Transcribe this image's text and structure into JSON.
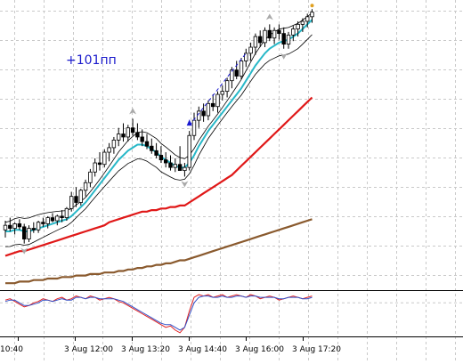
{
  "chart_data": {
    "type": "line",
    "subtype": "candlestick-with-indicators",
    "annotation": "+101пп",
    "colors": {
      "background": "#ffffff",
      "grid": "#c9c9c9",
      "candle": "#000000",
      "ma_fast": "#28b8c8",
      "ma_mid": "#e01818",
      "ma_slow": "#8a5a2e",
      "envelope": "#000000",
      "arrow_markers": "#a9a9a9",
      "signal_arrow": "#1a1ad0",
      "annotation": "#1a1acc",
      "osc_red": "#e02020",
      "osc_blue": "#3050c8",
      "last_marker": "#e0a020"
    },
    "grid": true,
    "time_axis": {
      "tick_labels": [
        "10:40",
        "3 Aug 12:00",
        "3 Aug 13:20",
        "3 Aug 14:40",
        "3 Aug 16:00",
        "3 Aug 17:20"
      ]
    },
    "candles": [
      {
        "o": 185,
        "h": 191,
        "l": 180,
        "c": 188
      },
      {
        "o": 188,
        "h": 193,
        "l": 184,
        "c": 186
      },
      {
        "o": 186,
        "h": 190,
        "l": 182,
        "c": 189
      },
      {
        "o": 189,
        "h": 192,
        "l": 185,
        "c": 187
      },
      {
        "o": 187,
        "h": 189,
        "l": 176,
        "c": 179
      },
      {
        "o": 179,
        "h": 188,
        "l": 177,
        "c": 186
      },
      {
        "o": 186,
        "h": 190,
        "l": 183,
        "c": 185
      },
      {
        "o": 185,
        "h": 191,
        "l": 183,
        "c": 190
      },
      {
        "o": 190,
        "h": 193,
        "l": 187,
        "c": 189
      },
      {
        "o": 189,
        "h": 194,
        "l": 186,
        "c": 193
      },
      {
        "o": 193,
        "h": 196,
        "l": 190,
        "c": 191
      },
      {
        "o": 191,
        "h": 195,
        "l": 188,
        "c": 194
      },
      {
        "o": 194,
        "h": 198,
        "l": 190,
        "c": 193
      },
      {
        "o": 193,
        "h": 200,
        "l": 191,
        "c": 199
      },
      {
        "o": 199,
        "h": 210,
        "l": 197,
        "c": 207
      },
      {
        "o": 207,
        "h": 213,
        "l": 200,
        "c": 203
      },
      {
        "o": 203,
        "h": 212,
        "l": 201,
        "c": 211
      },
      {
        "o": 211,
        "h": 218,
        "l": 207,
        "c": 216
      },
      {
        "o": 216,
        "h": 225,
        "l": 213,
        "c": 223
      },
      {
        "o": 223,
        "h": 232,
        "l": 220,
        "c": 229
      },
      {
        "o": 229,
        "h": 236,
        "l": 224,
        "c": 228
      },
      {
        "o": 228,
        "h": 238,
        "l": 226,
        "c": 236
      },
      {
        "o": 236,
        "h": 242,
        "l": 230,
        "c": 239
      },
      {
        "o": 239,
        "h": 246,
        "l": 235,
        "c": 244
      },
      {
        "o": 244,
        "h": 252,
        "l": 240,
        "c": 248
      },
      {
        "o": 248,
        "h": 255,
        "l": 243,
        "c": 246
      },
      {
        "o": 246,
        "h": 254,
        "l": 243,
        "c": 252
      },
      {
        "o": 252,
        "h": 258,
        "l": 247,
        "c": 249
      },
      {
        "o": 249,
        "h": 255,
        "l": 244,
        "c": 246
      },
      {
        "o": 246,
        "h": 251,
        "l": 240,
        "c": 243
      },
      {
        "o": 243,
        "h": 248,
        "l": 238,
        "c": 240
      },
      {
        "o": 240,
        "h": 245,
        "l": 235,
        "c": 237
      },
      {
        "o": 237,
        "h": 242,
        "l": 232,
        "c": 234
      },
      {
        "o": 234,
        "h": 240,
        "l": 229,
        "c": 231
      },
      {
        "o": 231,
        "h": 236,
        "l": 226,
        "c": 229
      },
      {
        "o": 229,
        "h": 234,
        "l": 224,
        "c": 226
      },
      {
        "o": 226,
        "h": 232,
        "l": 223,
        "c": 228
      },
      {
        "o": 228,
        "h": 240,
        "l": 224,
        "c": 224
      },
      {
        "o": 224,
        "h": 229,
        "l": 220,
        "c": 226
      },
      {
        "o": 226,
        "h": 250,
        "l": 224,
        "c": 247
      },
      {
        "o": 247,
        "h": 262,
        "l": 244,
        "c": 257
      },
      {
        "o": 257,
        "h": 266,
        "l": 252,
        "c": 263
      },
      {
        "o": 263,
        "h": 268,
        "l": 256,
        "c": 260
      },
      {
        "o": 260,
        "h": 270,
        "l": 257,
        "c": 268
      },
      {
        "o": 268,
        "h": 274,
        "l": 263,
        "c": 266
      },
      {
        "o": 266,
        "h": 276,
        "l": 262,
        "c": 274
      },
      {
        "o": 274,
        "h": 280,
        "l": 270,
        "c": 276
      },
      {
        "o": 276,
        "h": 285,
        "l": 272,
        "c": 283
      },
      {
        "o": 283,
        "h": 292,
        "l": 278,
        "c": 290
      },
      {
        "o": 290,
        "h": 296,
        "l": 284,
        "c": 286
      },
      {
        "o": 286,
        "h": 298,
        "l": 284,
        "c": 296
      },
      {
        "o": 296,
        "h": 304,
        "l": 292,
        "c": 301
      },
      {
        "o": 301,
        "h": 308,
        "l": 296,
        "c": 305
      },
      {
        "o": 305,
        "h": 314,
        "l": 300,
        "c": 312
      },
      {
        "o": 312,
        "h": 316,
        "l": 305,
        "c": 308
      },
      {
        "o": 308,
        "h": 318,
        "l": 305,
        "c": 316
      },
      {
        "o": 316,
        "h": 320,
        "l": 309,
        "c": 311
      },
      {
        "o": 311,
        "h": 318,
        "l": 307,
        "c": 316
      },
      {
        "o": 316,
        "h": 320,
        "l": 310,
        "c": 314
      },
      {
        "o": 314,
        "h": 318,
        "l": 304,
        "c": 307
      },
      {
        "o": 307,
        "h": 315,
        "l": 304,
        "c": 313
      },
      {
        "o": 313,
        "h": 319,
        "l": 309,
        "c": 317
      },
      {
        "o": 317,
        "h": 322,
        "l": 312,
        "c": 320
      },
      {
        "o": 320,
        "h": 324,
        "l": 315,
        "c": 322
      },
      {
        "o": 322,
        "h": 327,
        "l": 318,
        "c": 325
      },
      {
        "o": 325,
        "h": 330,
        "l": 321,
        "c": 328
      }
    ],
    "series": [
      {
        "values": [
          184,
          184,
          185,
          185,
          184,
          184,
          185,
          186,
          187,
          188,
          189,
          190,
          191,
          192,
          194,
          197,
          200,
          203,
          207,
          211,
          215,
          219,
          223,
          227,
          231,
          234,
          237,
          239,
          241,
          241,
          240,
          238,
          236,
          233,
          231,
          229,
          227,
          226,
          226,
          229,
          234,
          240,
          245,
          250,
          254,
          258,
          262,
          266,
          270,
          274,
          278,
          283,
          288,
          293,
          297,
          301,
          304,
          306,
          308,
          309,
          310,
          312,
          314,
          317,
          320,
          323
        ]
      },
      {
        "values": [
          168,
          169,
          170,
          171,
          171,
          172,
          173,
          174,
          175,
          176,
          177,
          178,
          179,
          180,
          181,
          182,
          183,
          184,
          185,
          186,
          187,
          188,
          190,
          191,
          192,
          193,
          194,
          195,
          196,
          197,
          197,
          198,
          198,
          199,
          199,
          200,
          200,
          201,
          201,
          203,
          205,
          207,
          209,
          211,
          213,
          215,
          217,
          219,
          221,
          224,
          227,
          230,
          233,
          236,
          239,
          242,
          245,
          248,
          251,
          254,
          257,
          260,
          263,
          266,
          269,
          272
        ]
      },
      {
        "values": [
          150,
          150,
          150,
          151,
          151,
          151,
          152,
          152,
          152,
          153,
          153,
          153,
          154,
          154,
          154,
          155,
          155,
          155,
          156,
          156,
          156,
          157,
          157,
          157,
          158,
          158,
          159,
          159,
          160,
          160,
          161,
          161,
          162,
          162,
          163,
          163,
          164,
          165,
          165,
          166,
          167,
          168,
          169,
          170,
          171,
          172,
          173,
          174,
          175,
          176,
          177,
          178,
          179,
          180,
          181,
          182,
          183,
          184,
          185,
          186,
          187,
          188,
          189,
          190,
          191,
          192
        ]
      }
    ],
    "oscillator": {
      "series": [
        {
          "values": [
            2,
            3,
            1,
            -1,
            -3,
            -2,
            0,
            1,
            3,
            2,
            1,
            3,
            4,
            2,
            3,
            5,
            4,
            3,
            5,
            4,
            2,
            3,
            4,
            3,
            1,
            0,
            -2,
            -4,
            -6,
            -8,
            -10,
            -12,
            -14,
            -16,
            -18,
            -17,
            -20,
            -22,
            -18,
            -6,
            4,
            6,
            5,
            6,
            4,
            5,
            6,
            4,
            5,
            6,
            5,
            4,
            6,
            5,
            3,
            4,
            5,
            4,
            2,
            3,
            4,
            5,
            4,
            3,
            4,
            5
          ]
        },
        {
          "values": [
            1,
            2,
            2,
            0,
            -2,
            -2,
            -1,
            0,
            2,
            2,
            1,
            2,
            3,
            2,
            2,
            4,
            4,
            3,
            4,
            4,
            3,
            3,
            3,
            3,
            2,
            1,
            -1,
            -3,
            -5,
            -7,
            -9,
            -11,
            -13,
            -15,
            -16,
            -16,
            -18,
            -20,
            -18,
            -9,
            0,
            4,
            5,
            5,
            4,
            4,
            5,
            4,
            4,
            5,
            5,
            4,
            5,
            5,
            4,
            4,
            4,
            4,
            3,
            3,
            4,
            4,
            4,
            3,
            3,
            4
          ]
        }
      ],
      "level": 0
    }
  }
}
